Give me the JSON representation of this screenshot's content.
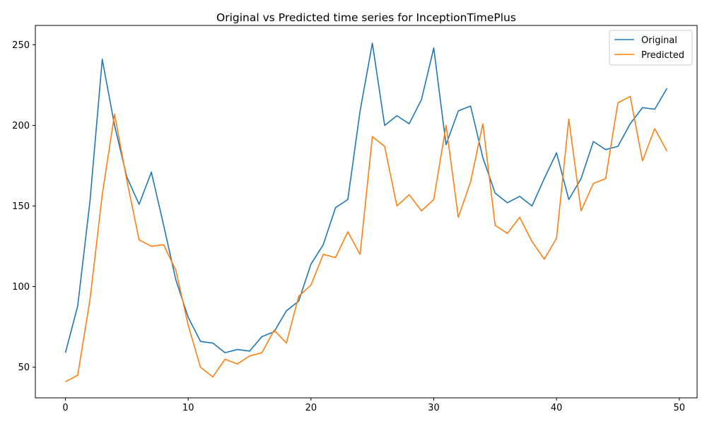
{
  "chart_data": {
    "type": "line",
    "title": "Original vs Predicted time series for InceptionTimePlus",
    "xlabel": "",
    "ylabel": "",
    "x": [
      0,
      1,
      2,
      3,
      4,
      5,
      6,
      7,
      8,
      9,
      10,
      11,
      12,
      13,
      14,
      15,
      16,
      17,
      18,
      19,
      20,
      21,
      22,
      23,
      24,
      25,
      26,
      27,
      28,
      29,
      30,
      31,
      32,
      33,
      34,
      35,
      36,
      37,
      38,
      39,
      40,
      41,
      42,
      43,
      44,
      45,
      46,
      47,
      48,
      49
    ],
    "xlim": [
      -2.45,
      51.45
    ],
    "ylim": [
      31,
      262
    ],
    "xticks": [
      0,
      10,
      20,
      30,
      40,
      50
    ],
    "yticks": [
      50,
      100,
      150,
      200,
      250
    ],
    "grid": false,
    "legend_position": "top-right",
    "series": [
      {
        "name": "Original",
        "color": "#1f77b4",
        "values": [
          59,
          88,
          153,
          241,
          200,
          168,
          151,
          171,
          138,
          104,
          81,
          66,
          65,
          59,
          61,
          60,
          69,
          72,
          85,
          91,
          114,
          126,
          149,
          154,
          209,
          251,
          200,
          206,
          201,
          216,
          248,
          188,
          209,
          212,
          180,
          158,
          152,
          156,
          150,
          167,
          183,
          154,
          167,
          190,
          185,
          187,
          201,
          211,
          210,
          223
        ]
      },
      {
        "name": "Predicted",
        "color": "#ff7f0e",
        "values": [
          41,
          45,
          92,
          157,
          207,
          166,
          129,
          125,
          126,
          110,
          76,
          50,
          44,
          55,
          52,
          57,
          59,
          73,
          65,
          94,
          101,
          120,
          118,
          134,
          120,
          193,
          187,
          150,
          157,
          147,
          154,
          200,
          143,
          165,
          201,
          138,
          133,
          143,
          128,
          117,
          130,
          204,
          147,
          164,
          167,
          214,
          218,
          178,
          198,
          184
        ]
      }
    ]
  }
}
